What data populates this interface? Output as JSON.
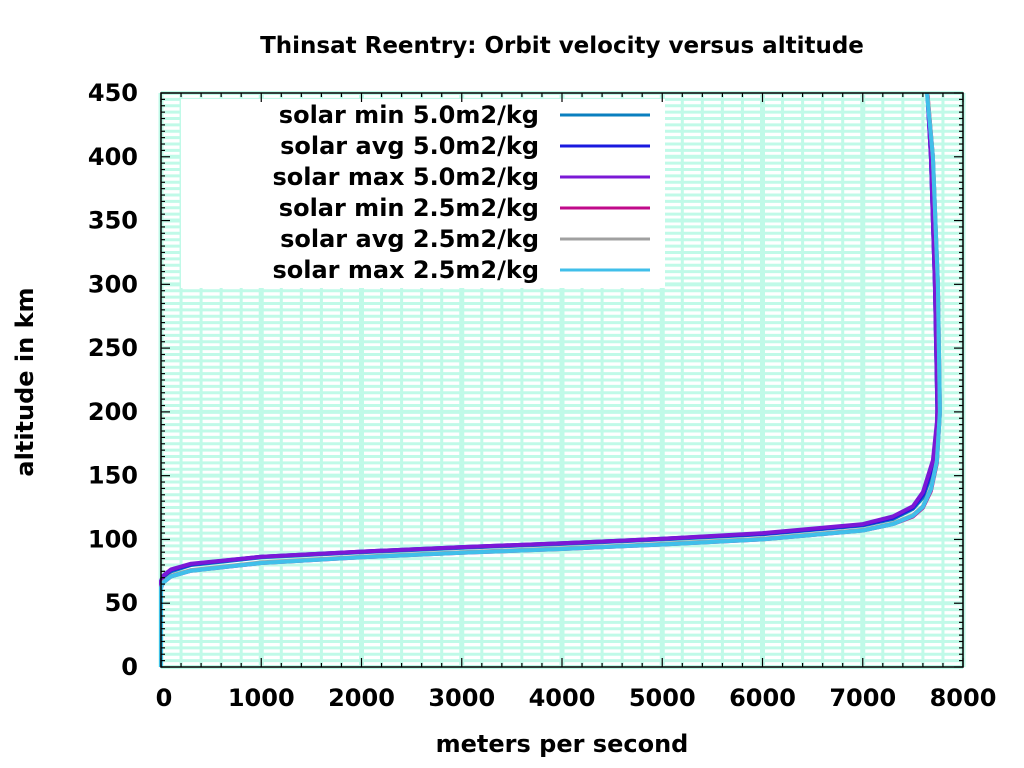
{
  "chart_data": {
    "type": "line",
    "title": "Thinsat Reentry: Orbit velocity versus altitude",
    "xlabel": "meters per second",
    "ylabel": "altitude in km",
    "xlim": [
      0,
      8000
    ],
    "ylim": [
      0,
      450
    ],
    "x_ticks": [
      0,
      1000,
      2000,
      3000,
      4000,
      5000,
      6000,
      7000,
      8000
    ],
    "x_tick_labels": [
      "0",
      "1000",
      "2000",
      "3000",
      "4000",
      "5000",
      "6000",
      "7000",
      "8000"
    ],
    "x_minor_step": 200,
    "y_ticks": [
      0,
      50,
      100,
      150,
      200,
      250,
      300,
      350,
      400,
      450
    ],
    "y_tick_labels": [
      "0",
      "50",
      "100",
      "150",
      "200",
      "250",
      "300",
      "350",
      "400",
      "450"
    ],
    "y_minor_step": 5,
    "grid": true,
    "grid_color": "#c0fae8",
    "legend_position": "top-left",
    "series": [
      {
        "name": "solar min 5.0m2/kg",
        "color": "#0a7fbf",
        "x": [
          0,
          0,
          20,
          100,
          300,
          1000,
          2000,
          3000,
          4000,
          5000,
          6000,
          7000,
          7300,
          7500,
          7600,
          7700,
          7740,
          7745,
          7720,
          7680,
          7645
        ],
        "y": [
          0,
          66,
          70,
          75,
          80,
          86,
          90,
          93.5,
          96.5,
          100,
          104,
          111,
          116,
          124,
          133,
          155,
          185,
          200,
          300,
          400,
          450
        ]
      },
      {
        "name": "solar avg 5.0m2/kg",
        "color": "#1a1adf",
        "x": [
          0,
          0,
          20,
          100,
          300,
          1000,
          2000,
          3000,
          4000,
          5000,
          6000,
          7000,
          7300,
          7500,
          7600,
          7700,
          7740,
          7745,
          7720,
          7680,
          7645
        ],
        "y": [
          0,
          67,
          71,
          76,
          80.5,
          86.5,
          90.5,
          94,
          97,
          100.5,
          104.5,
          111.5,
          117,
          125,
          135,
          158,
          188,
          200,
          300,
          400,
          450
        ]
      },
      {
        "name": "solar max 5.0m2/kg",
        "color": "#7b18d6",
        "x": [
          0,
          0,
          20,
          100,
          300,
          1000,
          2000,
          3000,
          4000,
          5000,
          6000,
          7000,
          7300,
          7500,
          7600,
          7700,
          7740,
          7745,
          7720,
          7680,
          7645
        ],
        "y": [
          0,
          67.5,
          71.5,
          76.5,
          81,
          86.5,
          90.5,
          94,
          97,
          100.5,
          105,
          112,
          118,
          126,
          137,
          162,
          192,
          205,
          300,
          400,
          450
        ]
      },
      {
        "name": "solar min 2.5m2/kg",
        "color": "#c00a8a",
        "x": [
          0,
          0,
          20,
          100,
          300,
          1000,
          2000,
          3000,
          4000,
          5000,
          6000,
          7000,
          7300,
          7500,
          7600,
          7680,
          7740,
          7770,
          7750,
          7700,
          7645
        ],
        "y": [
          0,
          62,
          66,
          71,
          75.5,
          81.5,
          86,
          89.5,
          92.5,
          96,
          100,
          107,
          112,
          118,
          125,
          138,
          160,
          200,
          300,
          400,
          450
        ]
      },
      {
        "name": "solar avg 2.5m2/kg",
        "color": "#a0a0a0",
        "x": [
          0,
          0,
          20,
          100,
          300,
          1000,
          2000,
          3000,
          4000,
          5000,
          6000,
          7000,
          7300,
          7500,
          7600,
          7680,
          7740,
          7770,
          7750,
          7700,
          7645
        ],
        "y": [
          0,
          62.5,
          66.5,
          71.5,
          76,
          82,
          86.5,
          90,
          93,
          96.5,
          100.5,
          107.5,
          112.5,
          119,
          126,
          140,
          162,
          200,
          300,
          400,
          450
        ]
      },
      {
        "name": "solar max 2.5m2/kg",
        "color": "#40bfea",
        "x": [
          0,
          0,
          20,
          100,
          300,
          1000,
          2000,
          3000,
          4000,
          5000,
          6000,
          7000,
          7300,
          7500,
          7600,
          7680,
          7740,
          7770,
          7750,
          7700,
          7640
        ],
        "y": [
          0,
          62,
          66,
          71,
          75.5,
          81.5,
          86,
          89.5,
          92.5,
          96,
          100,
          107,
          112,
          118.5,
          125.5,
          139,
          161,
          200,
          300,
          400,
          450
        ]
      }
    ]
  }
}
